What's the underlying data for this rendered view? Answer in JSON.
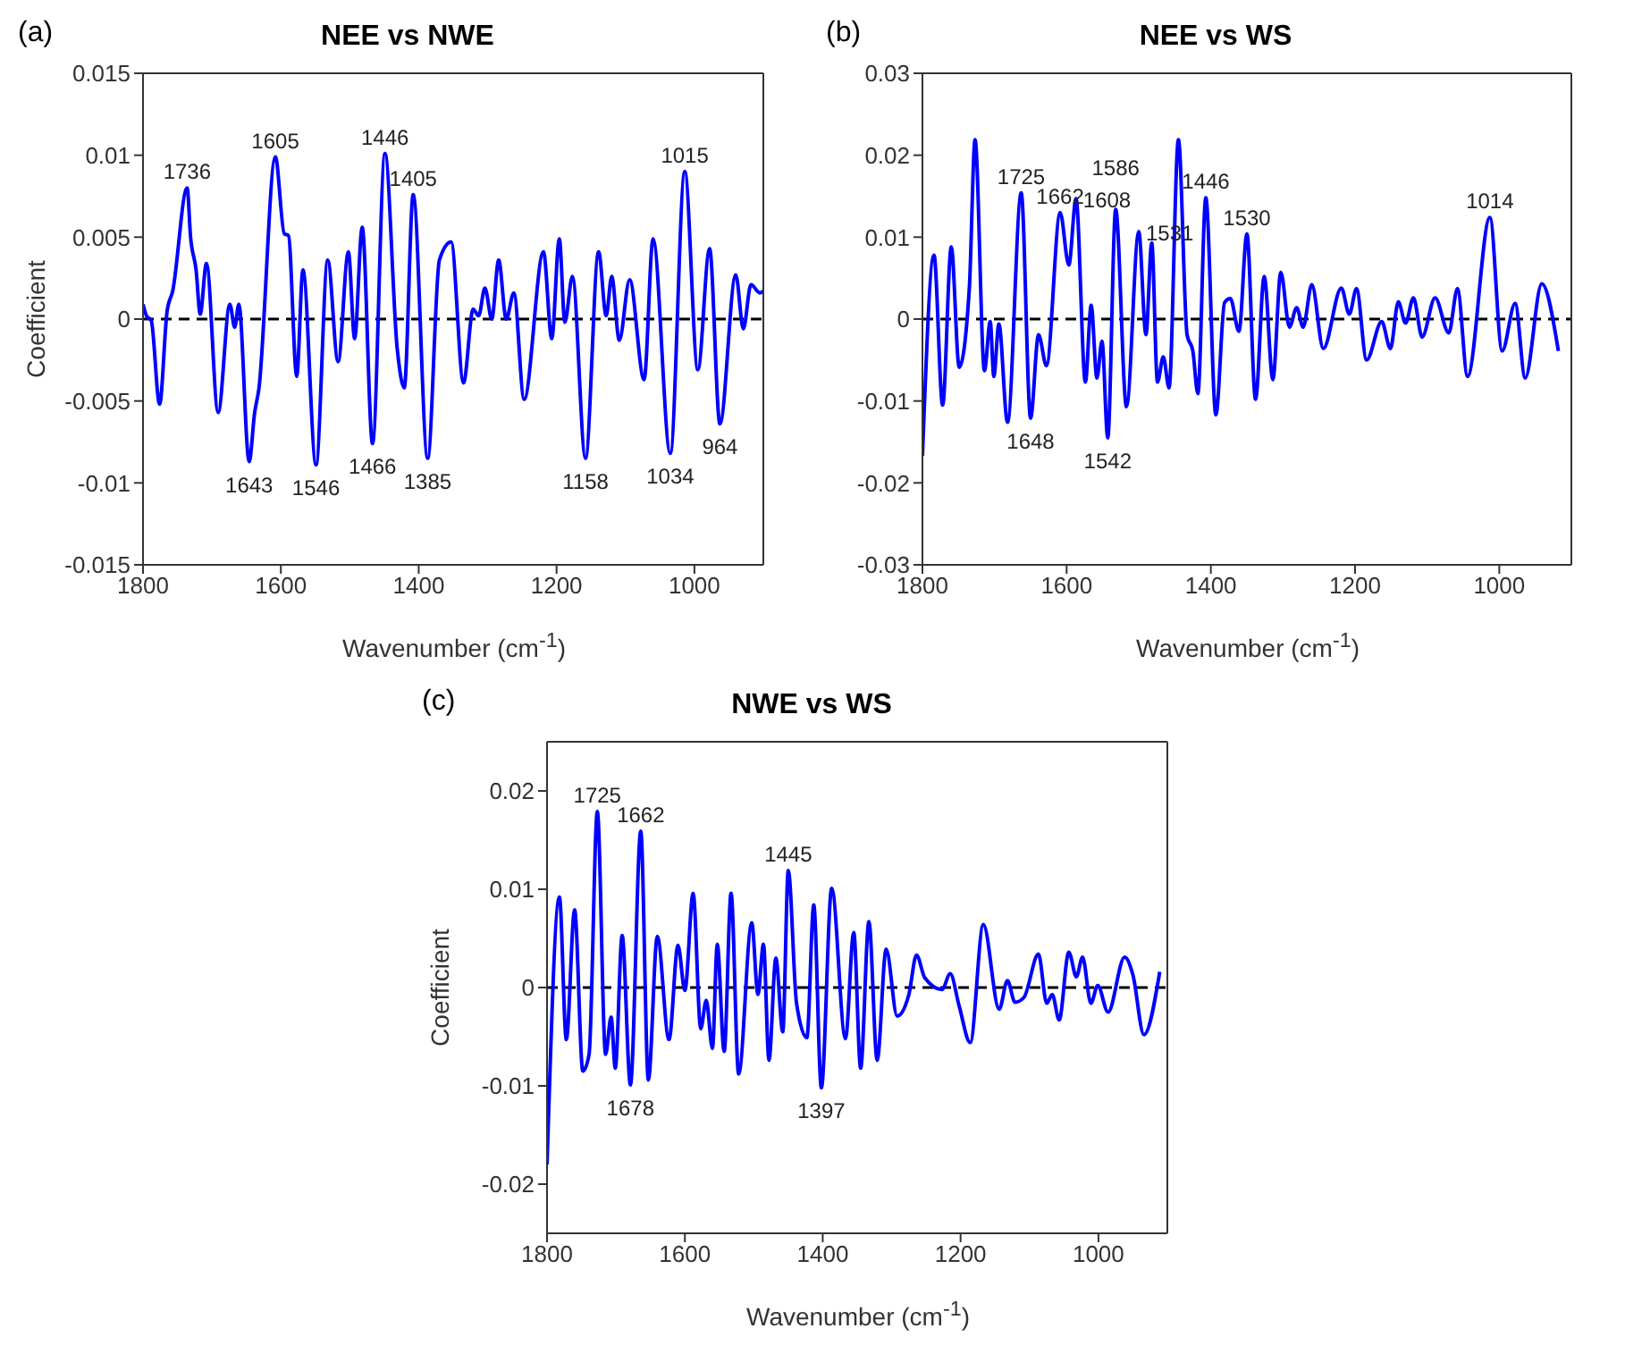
{
  "chart_data": [
    {
      "type": "line",
      "title": "NEE vs NWE",
      "xlabel": "Wavenumber (cm$^{-1}$)",
      "ylabel": "Coefficient",
      "xlim": [
        1800,
        900
      ],
      "xticks": [
        1800,
        1600,
        1400,
        1200,
        1000
      ],
      "ylim": [
        -0.015,
        0.015
      ],
      "yticks": [
        -0.015,
        -0.01,
        -0.005,
        0,
        0.005,
        0.01,
        0.015
      ],
      "grid": false,
      "marker": "none",
      "line_style": "solid",
      "color": "#0000ff",
      "x": [
        1800,
        1795,
        1788,
        1776,
        1765,
        1757,
        1736,
        1731,
        1723,
        1717,
        1708,
        1691,
        1674,
        1667,
        1661,
        1646,
        1638,
        1632,
        1608,
        1595,
        1589,
        1577,
        1568,
        1549,
        1532,
        1517,
        1502,
        1493,
        1482,
        1467,
        1449,
        1431,
        1421,
        1408,
        1387,
        1370,
        1353,
        1335,
        1321,
        1313,
        1304,
        1294,
        1284,
        1273,
        1262,
        1247,
        1219,
        1207,
        1196,
        1188,
        1177,
        1158,
        1139,
        1128,
        1120,
        1109,
        1094,
        1073,
        1060,
        1035,
        1014,
        995,
        978,
        963,
        940,
        929,
        918,
        905,
        900
      ],
      "values": [
        0.0009,
        0.0002,
        -0.0001,
        -0.0052,
        0.0005,
        0.0017,
        0.008,
        0.005,
        0.003,
        0.0003,
        0.0034,
        -0.0057,
        0.0009,
        -0.0005,
        0.0009,
        -0.0087,
        -0.0057,
        -0.0043,
        0.0099,
        0.0052,
        0.0051,
        -0.0035,
        0.003,
        -0.0089,
        0.0036,
        -0.0026,
        0.0041,
        -0.0012,
        0.0056,
        -0.0076,
        0.0101,
        -0.0019,
        -0.0042,
        0.0076,
        -0.0085,
        0.0036,
        0.0047,
        -0.0039,
        0.0006,
        0.0002,
        0.0019,
        0,
        0.0036,
        0,
        0.0016,
        -0.0049,
        0.0041,
        -0.0012,
        0.0049,
        -0.0002,
        0.0026,
        -0.0085,
        0.0041,
        0.0002,
        0.0026,
        -0.0013,
        0.0024,
        -0.0037,
        0.0049,
        -0.0082,
        0.009,
        -0.0031,
        0.0043,
        -0.0064,
        0.0027,
        -0.0006,
        0.0021,
        0.0016,
        0.0017
      ],
      "ref_lines": [
        {
          "axis": "y",
          "value": 0,
          "color": "#000000",
          "line_style": "dashed"
        }
      ],
      "annotations": [
        "(a)",
        {
          "text": "1736",
          "x": 1736,
          "y": 0.008
        },
        {
          "text": "1605",
          "x": 1608,
          "y": 0.0099
        },
        {
          "text": "1446",
          "x": 1449,
          "y": 0.0101
        },
        {
          "text": "1405",
          "x": 1408,
          "y": 0.0076
        },
        {
          "text": "1015",
          "x": 1014,
          "y": 0.009
        },
        {
          "text": "1643",
          "x": 1646,
          "y": -0.0087
        },
        {
          "text": "1546",
          "x": 1549,
          "y": -0.0089
        },
        {
          "text": "1466",
          "x": 1467,
          "y": -0.0076
        },
        {
          "text": "1385",
          "x": 1387,
          "y": -0.0085
        },
        {
          "text": "1158",
          "x": 1158,
          "y": -0.0085
        },
        {
          "text": "1034",
          "x": 1035,
          "y": -0.0082
        },
        {
          "text": "964",
          "x": 963,
          "y": -0.0064
        }
      ]
    },
    {
      "type": "line",
      "title": "NEE vs WS",
      "xlabel": "Wavenumber (cm$^{-1}$)",
      "xlim": [
        1800,
        900
      ],
      "xticks": [
        1800,
        1600,
        1400,
        1200,
        1000
      ],
      "ylim": [
        -0.03,
        0.03
      ],
      "yticks": [
        -0.03,
        -0.02,
        -0.01,
        0,
        0.01,
        0.02,
        0.03
      ],
      "grid": false,
      "marker": "none",
      "line_style": "solid",
      "color": "#0000ff",
      "x": [
        1800,
        1784,
        1772,
        1760,
        1749,
        1735,
        1727,
        1714,
        1706,
        1701,
        1694,
        1682,
        1663,
        1650,
        1639,
        1628,
        1609,
        1597,
        1587,
        1574,
        1566,
        1558,
        1551,
        1543,
        1532,
        1517,
        1500,
        1490,
        1482,
        1474,
        1466,
        1458,
        1445,
        1433,
        1425,
        1418,
        1407,
        1393,
        1381,
        1373,
        1361,
        1350,
        1338,
        1326,
        1314,
        1303,
        1291,
        1281,
        1272,
        1260,
        1244,
        1219,
        1208,
        1198,
        1184,
        1163,
        1151,
        1140,
        1130,
        1119,
        1107,
        1089,
        1070,
        1058,
        1044,
        1013,
        996,
        978,
        964,
        941,
        918
      ],
      "values": [
        -0.0167,
        0.0078,
        -0.0105,
        0.0088,
        -0.0059,
        0.0037,
        0.0219,
        -0.0063,
        -0.0003,
        -0.007,
        -0.0006,
        -0.0126,
        0.0154,
        -0.0121,
        -0.0019,
        -0.0057,
        0.013,
        0.0066,
        0.0147,
        -0.0077,
        0.0017,
        -0.0072,
        -0.0027,
        -0.0145,
        0.0134,
        -0.0107,
        0.0107,
        -0.0019,
        0.0093,
        -0.0077,
        -0.0046,
        -0.0084,
        0.0219,
        -0.0019,
        -0.0039,
        -0.0091,
        0.0148,
        -0.0117,
        0.002,
        0.0025,
        -0.0015,
        0.0104,
        -0.0098,
        0.0052,
        -0.0074,
        0.0057,
        -0.001,
        0.0014,
        -0.001,
        0.0042,
        -0.0036,
        0.0038,
        0.0006,
        0.0037,
        -0.005,
        -0.0003,
        -0.0036,
        0.0021,
        -0.0005,
        0.0026,
        -0.0022,
        0.0026,
        -0.0017,
        0.0037,
        -0.007,
        0.0124,
        -0.0039,
        0.0019,
        -0.0072,
        0.0043,
        -0.0039
      ],
      "ref_lines": [
        {
          "axis": "y",
          "value": 0,
          "color": "#000000",
          "line_style": "dashed"
        }
      ],
      "annotations": [
        "(b)",
        {
          "text": "1725",
          "x": 1663,
          "y": 0.0154
        },
        {
          "text": "1662",
          "x": 1609,
          "y": 0.013
        },
        {
          "text": "1608",
          "x": 1587,
          "y": 0.0147
        },
        {
          "text": "1586",
          "x": 1532,
          "y": 0.0134
        },
        {
          "text": "1531",
          "x": 1500,
          "y": 0.0107
        },
        {
          "text": "1446",
          "x": 1407,
          "y": 0.0148
        },
        {
          "text": "1530",
          "x": 1350,
          "y": 0.0104
        },
        {
          "text": "1014",
          "x": 1013,
          "y": 0.0124
        },
        {
          "text": "1648",
          "x": 1650,
          "y": -0.0121
        },
        {
          "text": "1542",
          "x": 1543,
          "y": -0.0145
        }
      ]
    },
    {
      "type": "line",
      "title": "NWE vs WS",
      "xlabel": "Wavenumber (cm$^{-1}$)",
      "ylabel": "Coefficient",
      "xlim": [
        1800,
        900
      ],
      "xticks": [
        1800,
        1600,
        1400,
        1200,
        1000
      ],
      "ylim": [
        -0.025,
        0.025
      ],
      "yticks": [
        -0.02,
        -0.01,
        0,
        0.01,
        0.02
      ],
      "grid": false,
      "marker": "none",
      "line_style": "solid",
      "color": "#0000ff",
      "x": [
        1800,
        1782,
        1772,
        1760,
        1748,
        1739,
        1727,
        1715,
        1707,
        1701,
        1691,
        1679,
        1664,
        1653,
        1640,
        1623,
        1610,
        1600,
        1588,
        1577,
        1569,
        1560,
        1553,
        1543,
        1533,
        1522,
        1503,
        1494,
        1486,
        1478,
        1468,
        1458,
        1450,
        1438,
        1423,
        1413,
        1402,
        1387,
        1367,
        1355,
        1345,
        1333,
        1321,
        1308,
        1292,
        1275,
        1264,
        1252,
        1227,
        1215,
        1202,
        1186,
        1167,
        1144,
        1132,
        1121,
        1108,
        1087,
        1075,
        1067,
        1057,
        1043,
        1032,
        1023,
        1011,
        1001,
        986,
        962,
        950,
        934,
        911
      ],
      "values": [
        -0.018,
        0.0092,
        -0.0053,
        0.0079,
        -0.0085,
        -0.0068,
        0.0179,
        -0.0068,
        -0.003,
        -0.0082,
        0.0053,
        -0.0099,
        0.0159,
        -0.0094,
        0.0052,
        -0.0053,
        0.0043,
        -0.0003,
        0.0096,
        -0.0042,
        -0.0013,
        -0.0062,
        0.0044,
        -0.0065,
        0.0096,
        -0.0088,
        0.0066,
        -0.0007,
        0.0044,
        -0.0074,
        0.003,
        -0.0045,
        0.0119,
        -0.0016,
        -0.0051,
        0.0084,
        -0.0102,
        0.0101,
        -0.0052,
        0.0056,
        -0.0082,
        0.0067,
        -0.0074,
        0.0039,
        -0.0029,
        -0.0007,
        0.0033,
        0.001,
        -0.0002,
        0.0014,
        -0.0019,
        -0.0056,
        0.0064,
        -0.0022,
        0.0007,
        -0.0015,
        -0.001,
        0.0034,
        -0.0016,
        -0.0007,
        -0.0033,
        0.0036,
        0.0011,
        0.0031,
        -0.0016,
        0.0002,
        -0.0025,
        0.0031,
        0.0013,
        -0.0048,
        0.0016
      ],
      "ref_lines": [
        {
          "axis": "y",
          "value": 0,
          "color": "#000000",
          "line_style": "dashed"
        }
      ],
      "annotations": [
        "(c)",
        {
          "text": "1725",
          "x": 1727,
          "y": 0.0179
        },
        {
          "text": "1662",
          "x": 1664,
          "y": 0.0159
        },
        {
          "text": "1445",
          "x": 1450,
          "y": 0.0119
        },
        {
          "text": "1678",
          "x": 1679,
          "y": -0.0099
        },
        {
          "text": "1397",
          "x": 1402,
          "y": -0.0102
        }
      ]
    }
  ]
}
